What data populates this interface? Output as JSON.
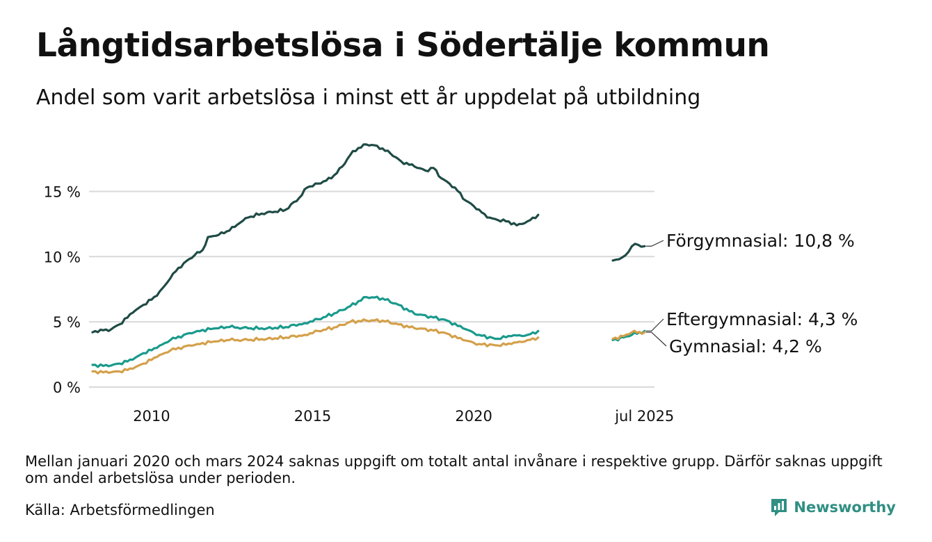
{
  "title": "Långtidsarbetslösa i Södertälje kommun",
  "subtitle": "Andel som varit arbetslösa i minst ett år uppdelat på utbildning",
  "note": "Mellan januari 2020 och mars 2024 saknas uppgift om totalt antal invånare i respektive grupp. Därför saknas uppgift om andel arbetslösa under perioden.",
  "source": "Källa: Arbetsförmedlingen",
  "brand": {
    "name": "Newsworthy",
    "icon": "newsworthy-logo-icon",
    "color": "#2f8f83"
  },
  "chart_data": {
    "type": "line",
    "x_ticks": [
      "2010",
      "2015",
      "2020",
      "jul 2025"
    ],
    "y_ticks": [
      "0 %",
      "5 %",
      "10 %",
      "15 %"
    ],
    "ylim": [
      0,
      19
    ],
    "grid": "horizontal",
    "gap": [
      "2020-01",
      "2024-03"
    ],
    "series": [
      {
        "name": "Förgymnasial",
        "end_label": "Förgymnasial: 10,8 %",
        "color": "#1f4b45",
        "points": [
          [
            "2008-03",
            4.2
          ],
          [
            "2008-06",
            4.4
          ],
          [
            "2008-09",
            4.3
          ],
          [
            "2009-01",
            4.8
          ],
          [
            "2009-06",
            5.7
          ],
          [
            "2009-10",
            6.3
          ],
          [
            "2010-03",
            7.0
          ],
          [
            "2010-06",
            7.8
          ],
          [
            "2010-09",
            8.7
          ],
          [
            "2011-01",
            9.5
          ],
          [
            "2011-05",
            10.1
          ],
          [
            "2011-08",
            10.5
          ],
          [
            "2011-10",
            11.5
          ],
          [
            "2012-01",
            11.6
          ],
          [
            "2012-06",
            12.0
          ],
          [
            "2012-10",
            12.6
          ],
          [
            "2013-01",
            13.0
          ],
          [
            "2013-06",
            13.3
          ],
          [
            "2013-10",
            13.4
          ],
          [
            "2014-03",
            13.6
          ],
          [
            "2014-08",
            14.5
          ],
          [
            "2014-11",
            15.3
          ],
          [
            "2015-03",
            15.6
          ],
          [
            "2015-08",
            16.0
          ],
          [
            "2015-12",
            16.9
          ],
          [
            "2016-04",
            18.1
          ],
          [
            "2016-09",
            18.6
          ],
          [
            "2017-01",
            18.5
          ],
          [
            "2017-06",
            17.9
          ],
          [
            "2017-10",
            17.3
          ],
          [
            "2018-03",
            16.9
          ],
          [
            "2018-07",
            16.6
          ],
          [
            "2018-10",
            16.8
          ],
          [
            "2019-01",
            16.0
          ],
          [
            "2019-06",
            15.3
          ],
          [
            "2019-10",
            14.3
          ],
          [
            "2020-03",
            13.6
          ],
          [
            "2020-06",
            13.0
          ],
          [
            "2020-10",
            12.8
          ],
          [
            "2021-02",
            12.7
          ],
          [
            "2021-05",
            12.4
          ],
          [
            "2021-09",
            12.7
          ],
          [
            "2022-01",
            13.2
          ]
        ],
        "points_late": [
          [
            "2024-04",
            9.7
          ],
          [
            "2024-07",
            9.8
          ],
          [
            "2024-10",
            10.1
          ],
          [
            "2025-01",
            10.8
          ],
          [
            "2025-04",
            10.9
          ],
          [
            "2025-07",
            10.8
          ]
        ]
      },
      {
        "name": "Eftergymnasial",
        "end_label": "Eftergymnasial:  4,3 %",
        "color": "#1a9a8c",
        "points": [
          [
            "2008-03",
            1.7
          ],
          [
            "2008-09",
            1.6
          ],
          [
            "2009-01",
            1.8
          ],
          [
            "2009-06",
            2.1
          ],
          [
            "2009-10",
            2.6
          ],
          [
            "2010-03",
            3.0
          ],
          [
            "2010-08",
            3.6
          ],
          [
            "2011-01",
            4.0
          ],
          [
            "2011-06",
            4.3
          ],
          [
            "2012-01",
            4.5
          ],
          [
            "2012-06",
            4.6
          ],
          [
            "2013-01",
            4.5
          ],
          [
            "2013-08",
            4.5
          ],
          [
            "2014-03",
            4.6
          ],
          [
            "2014-10",
            4.9
          ],
          [
            "2015-03",
            5.2
          ],
          [
            "2015-10",
            5.7
          ],
          [
            "2016-03",
            6.2
          ],
          [
            "2016-09",
            6.9
          ],
          [
            "2017-03",
            6.8
          ],
          [
            "2017-09",
            6.3
          ],
          [
            "2018-03",
            5.6
          ],
          [
            "2018-09",
            5.4
          ],
          [
            "2019-03",
            5.1
          ],
          [
            "2019-09",
            4.5
          ],
          [
            "2020-03",
            4.0
          ],
          [
            "2020-09",
            3.7
          ],
          [
            "2021-03",
            3.9
          ],
          [
            "2021-09",
            4.0
          ],
          [
            "2022-01",
            4.3
          ]
        ],
        "points_late": [
          [
            "2024-04",
            3.6
          ],
          [
            "2024-09",
            3.8
          ],
          [
            "2025-01",
            4.0
          ],
          [
            "2025-07",
            4.3
          ]
        ]
      },
      {
        "name": "Gymnasial",
        "end_label": "Gymnasial:  4,2 %",
        "color": "#d4a04a",
        "points": [
          [
            "2008-03",
            1.2
          ],
          [
            "2008-09",
            1.1
          ],
          [
            "2009-01",
            1.2
          ],
          [
            "2009-06",
            1.4
          ],
          [
            "2009-10",
            1.8
          ],
          [
            "2010-03",
            2.3
          ],
          [
            "2010-08",
            2.8
          ],
          [
            "2011-01",
            3.1
          ],
          [
            "2011-06",
            3.3
          ],
          [
            "2012-01",
            3.5
          ],
          [
            "2012-06",
            3.6
          ],
          [
            "2013-01",
            3.6
          ],
          [
            "2013-08",
            3.7
          ],
          [
            "2014-03",
            3.8
          ],
          [
            "2014-10",
            4.0
          ],
          [
            "2015-03",
            4.3
          ],
          [
            "2015-10",
            4.6
          ],
          [
            "2016-03",
            5.0
          ],
          [
            "2016-09",
            5.1
          ],
          [
            "2017-03",
            5.1
          ],
          [
            "2017-09",
            4.8
          ],
          [
            "2018-03",
            4.5
          ],
          [
            "2018-09",
            4.4
          ],
          [
            "2019-03",
            4.1
          ],
          [
            "2019-09",
            3.6
          ],
          [
            "2020-03",
            3.3
          ],
          [
            "2020-09",
            3.2
          ],
          [
            "2021-03",
            3.3
          ],
          [
            "2021-09",
            3.6
          ],
          [
            "2022-01",
            3.8
          ]
        ],
        "points_late": [
          [
            "2024-04",
            3.7
          ],
          [
            "2024-09",
            3.9
          ],
          [
            "2025-01",
            4.2
          ],
          [
            "2025-07",
            4.2
          ]
        ]
      }
    ]
  }
}
